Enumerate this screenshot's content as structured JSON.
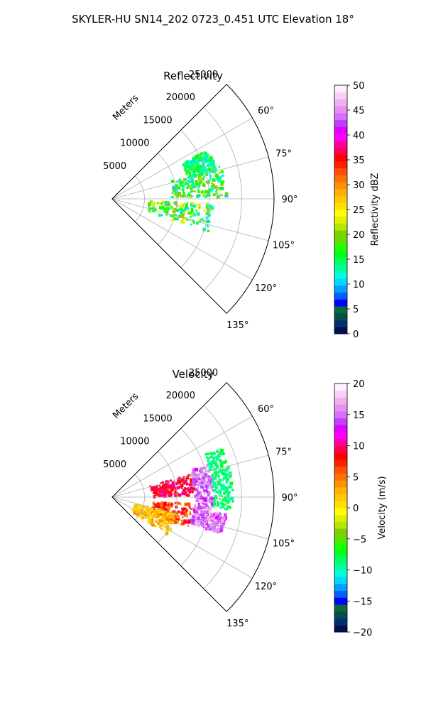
{
  "figure": {
    "suptitle": "SKYLER-HU  SN14_202  0723_0.451 UTC Elevation 18°"
  },
  "chart_data": [
    {
      "type": "heatmap",
      "title": "Reflectivity",
      "radial_unit_label": "Meters",
      "range_ticks": [
        "5000",
        "10000",
        "15000",
        "20000",
        "25000"
      ],
      "range_tick_values": [
        5000,
        10000,
        15000,
        20000,
        25000
      ],
      "azimuth_ticks": [
        "60°",
        "75°",
        "90°",
        "105°",
        "120°",
        "135°"
      ],
      "azimuth_tick_values": [
        60,
        75,
        90,
        105,
        120,
        135
      ],
      "azimuth_range": [
        45,
        135
      ],
      "range_max": 25000,
      "grid": true,
      "colorbar": {
        "label": "Reflectivity dBZ",
        "ticks": [
          "0",
          "5",
          "10",
          "15",
          "20",
          "25",
          "30",
          "35",
          "40",
          "45",
          "50"
        ],
        "range": [
          0,
          50
        ],
        "colors": [
          "#00104e",
          "#003070",
          "#064e48",
          "#0b6a3c",
          "#0000ff",
          "#0060ff",
          "#00a0ff",
          "#00d8ff",
          "#00ffd8",
          "#00ff9c",
          "#00ff60",
          "#00ff20",
          "#20ff00",
          "#60e000",
          "#80d000",
          "#b4e800",
          "#e0f000",
          "#ffff00",
          "#ffe000",
          "#ffc800",
          "#ffb000",
          "#ff9000",
          "#ff7000",
          "#ff5000",
          "#ff2000",
          "#ff0000",
          "#ff0050",
          "#ff00a0",
          "#ff00ff",
          "#e000ff",
          "#c040ff",
          "#d870ff",
          "#e890f0",
          "#f0b0f0",
          "#f8d0f8",
          "#fff0ff"
        ]
      },
      "echo_regions": [
        {
          "az_from": 72,
          "az_to": 88,
          "r_from": 9000,
          "r_to": 17500,
          "z_min": 10,
          "z_max": 22
        },
        {
          "az_from": 92,
          "az_to": 108,
          "r_from": 5500,
          "r_to": 15500,
          "z_min": 10,
          "z_max": 26
        },
        {
          "az_from": 62,
          "az_to": 74,
          "r_from": 12000,
          "r_to": 16500,
          "z_min": 11,
          "z_max": 18
        }
      ]
    },
    {
      "type": "heatmap",
      "title": "Velocity",
      "radial_unit_label": "Meters",
      "range_ticks": [
        "5000",
        "10000",
        "15000",
        "20000",
        "25000"
      ],
      "range_tick_values": [
        5000,
        10000,
        15000,
        20000,
        25000
      ],
      "azimuth_ticks": [
        "60°",
        "75°",
        "90°",
        "105°",
        "120°",
        "135°"
      ],
      "azimuth_tick_values": [
        60,
        75,
        90,
        105,
        120,
        135
      ],
      "azimuth_range": [
        45,
        135
      ],
      "range_max": 25000,
      "grid": true,
      "colorbar": {
        "label": "Velocity (m/s)",
        "ticks": [
          "−20",
          "−15",
          "−10",
          "−5",
          "0",
          "5",
          "10",
          "15",
          "20"
        ],
        "range": [
          -20,
          20
        ],
        "colors": [
          "#00104e",
          "#003070",
          "#064e48",
          "#0b6a3c",
          "#0000ff",
          "#0060ff",
          "#00a0ff",
          "#00d8ff",
          "#00ffd8",
          "#00ff9c",
          "#00ff60",
          "#00ff20",
          "#20ff00",
          "#60e000",
          "#80d000",
          "#b4e800",
          "#e0f000",
          "#ffff00",
          "#ffe000",
          "#ffc800",
          "#ffb000",
          "#ff9000",
          "#ff7000",
          "#ff5000",
          "#ff2000",
          "#ff0000",
          "#ff0050",
          "#ff00a0",
          "#ff00ff",
          "#e000ff",
          "#c040ff",
          "#d870ff",
          "#e890f0",
          "#f0b0f0",
          "#f8d0f8",
          "#fff0ff"
        ]
      },
      "echo_regions": [
        {
          "az_from": 72,
          "az_to": 88,
          "r_from": 6000,
          "r_to": 12500,
          "v_min": 7,
          "v_max": 11
        },
        {
          "az_from": 70,
          "az_to": 98,
          "r_from": 12500,
          "r_to": 15500,
          "v_min": 13,
          "v_max": 17
        },
        {
          "az_from": 64,
          "az_to": 96,
          "r_from": 15500,
          "r_to": 18500,
          "v_min": -10,
          "v_max": -7
        },
        {
          "az_from": 94,
          "az_to": 112,
          "r_from": 6000,
          "r_to": 12500,
          "v_min": 3,
          "v_max": 10
        },
        {
          "az_from": 98,
          "az_to": 108,
          "r_from": 12500,
          "r_to": 17500,
          "v_min": 12,
          "v_max": 18
        },
        {
          "az_from": 104,
          "az_to": 124,
          "r_from": 3500,
          "r_to": 10000,
          "v_min": 0,
          "v_max": 4
        }
      ]
    }
  ]
}
